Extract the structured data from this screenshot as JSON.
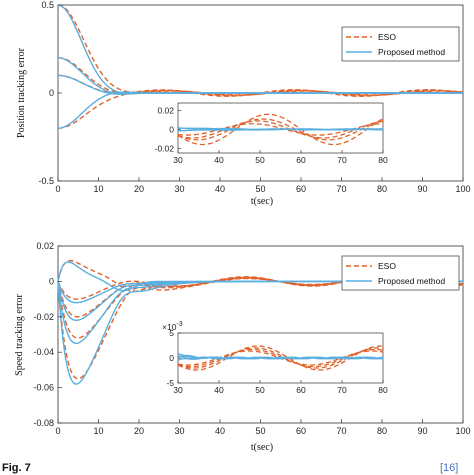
{
  "colors": {
    "eso": "#e0622a",
    "proposed": "#5aaee0",
    "axis": "#333333"
  },
  "caption": {
    "text": "Fig. 7",
    "ref": "[16]"
  },
  "chart_data": [
    {
      "type": "line",
      "ylabel": "Position tracking error",
      "xlabel": "t(sec)",
      "xlim": [
        0,
        100
      ],
      "ylim": [
        -0.5,
        0.5
      ],
      "xticks": [
        "0",
        "10",
        "20",
        "30",
        "40",
        "50",
        "60",
        "70",
        "80",
        "90",
        "100"
      ],
      "yticks": [
        "0.5",
        "0",
        "-0.5"
      ],
      "legend": {
        "position": "top-right",
        "entries": [
          "ESO",
          "Proposed method"
        ]
      },
      "series": [
        {
          "name": "ESO",
          "style": "dashed",
          "color": "#e0622a",
          "initial_values": [
            0.5,
            0.2,
            0.1,
            -0.2
          ],
          "osc_amplitude": 0.016,
          "period": 33
        },
        {
          "name": "Proposed method",
          "style": "solid",
          "color": "#5aaee0",
          "initial_values": [
            0.5,
            0.2,
            0.1,
            -0.2
          ],
          "osc_amplitude": 0.0
        }
      ],
      "inset": {
        "xlim": [
          30,
          80
        ],
        "ylim": [
          -0.025,
          0.028
        ],
        "xticks": [
          "30",
          "40",
          "50",
          "60",
          "70",
          "80"
        ],
        "yticks": [
          "0.02",
          "0",
          "-0.02"
        ]
      }
    },
    {
      "type": "line",
      "ylabel": "Speed tracking error",
      "xlabel": "t(sec)",
      "xlim": [
        0,
        100
      ],
      "ylim": [
        -0.08,
        0.02
      ],
      "xticks": [
        "0",
        "10",
        "20",
        "30",
        "40",
        "50",
        "60",
        "70",
        "80",
        "90",
        "100"
      ],
      "yticks": [
        "0.02",
        "0",
        "-0.02",
        "-0.04",
        "-0.06",
        "-0.08"
      ],
      "legend": {
        "position": "top-right",
        "entries": [
          "ESO",
          "Proposed method"
        ]
      },
      "series": [
        {
          "name": "ESO",
          "style": "dashed",
          "color": "#e0622a",
          "peak_values": [
            -0.055,
            -0.032,
            -0.02,
            -0.01,
            0.012
          ],
          "osc_amplitude": 0.0022,
          "period": 33
        },
        {
          "name": "Proposed method",
          "style": "solid",
          "color": "#5aaee0",
          "peak_values": [
            -0.058,
            -0.035,
            -0.022,
            -0.012,
            0.011
          ],
          "osc_amplitude": 0.0
        }
      ],
      "inset": {
        "xlim": [
          30,
          80
        ],
        "ylim": [
          -5,
          5
        ],
        "scale_label": "×10",
        "scale_exponent": "-3",
        "xticks": [
          "30",
          "40",
          "50",
          "60",
          "70",
          "80"
        ],
        "yticks": [
          "5",
          "0",
          "-5"
        ]
      }
    }
  ]
}
